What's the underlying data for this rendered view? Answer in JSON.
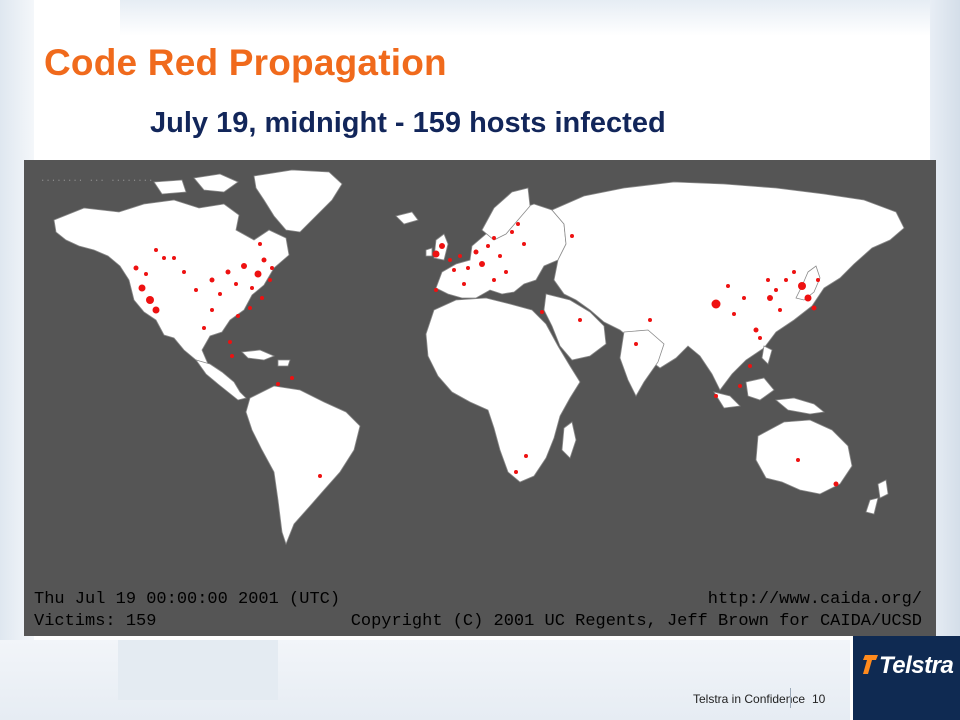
{
  "slide": {
    "title": "Code Red Propagation",
    "subtitle": "July 19, midnight - 159 hosts infected"
  },
  "map": {
    "timestamp": "Thu Jul 19 00:00:00 2001 (UTC)",
    "victims": "Victims: 159",
    "url": "http://www.caida.org/",
    "copyright": "Copyright (C) 2001 UC Regents, Jeff Brown for CAIDA/UCSD",
    "colors": {
      "ocean": "#555555",
      "land": "#ffffff",
      "borders": "#777777",
      "infected_host": "#ee1111"
    }
  },
  "footer": {
    "confidentiality": "Telstra in Confidence",
    "page_number": "10",
    "logo_text": "Telstra"
  }
}
